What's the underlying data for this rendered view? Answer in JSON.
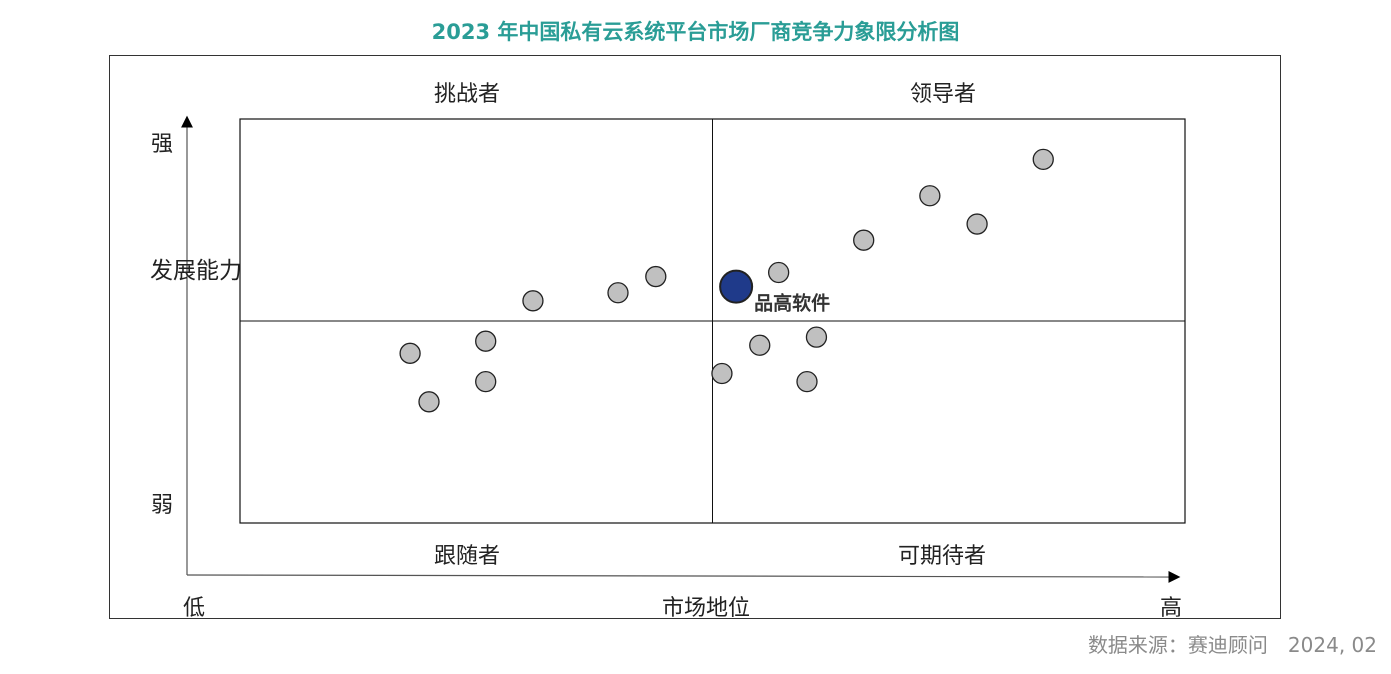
{
  "title": "2023 年中国私有云系统平台市场厂商竞争力象限分析图",
  "source": "数据来源：赛迪顾问　2024, 02",
  "quadrants": {
    "top_left": "挑战者",
    "top_right": "领导者",
    "bottom_left": "跟随者",
    "bottom_right": "可期待者"
  },
  "axes": {
    "y_label": "发展能力",
    "y_high": "强",
    "y_low": "弱",
    "x_label": "市场地位",
    "x_low": "低",
    "x_high": "高"
  },
  "colors": {
    "title": "#2a9d96",
    "point": "#c0c0c0",
    "highlight": "#1f3a8a"
  },
  "chart_data": {
    "type": "scatter",
    "title": "2023 年中国私有云系统平台市场厂商竞争力象限分析图",
    "xlabel": "市场地位",
    "ylabel": "发展能力",
    "xlim": [
      0,
      100
    ],
    "ylim": [
      0,
      100
    ],
    "grid": false,
    "dividers": {
      "x": 50,
      "y": 50
    },
    "points": [
      {
        "x": 18,
        "y": 42
      },
      {
        "x": 20,
        "y": 30
      },
      {
        "x": 26,
        "y": 35
      },
      {
        "x": 26,
        "y": 45
      },
      {
        "x": 31,
        "y": 55
      },
      {
        "x": 40,
        "y": 57
      },
      {
        "x": 44,
        "y": 61
      },
      {
        "x": 51,
        "y": 37
      },
      {
        "x": 55,
        "y": 44
      },
      {
        "x": 57,
        "y": 62
      },
      {
        "x": 60,
        "y": 35
      },
      {
        "x": 61,
        "y": 46
      },
      {
        "x": 66,
        "y": 70
      },
      {
        "x": 73,
        "y": 81
      },
      {
        "x": 78,
        "y": 74
      },
      {
        "x": 85,
        "y": 90
      },
      {
        "x": 52.5,
        "y": 58.5,
        "label": "品高软件",
        "highlight": true
      }
    ]
  }
}
